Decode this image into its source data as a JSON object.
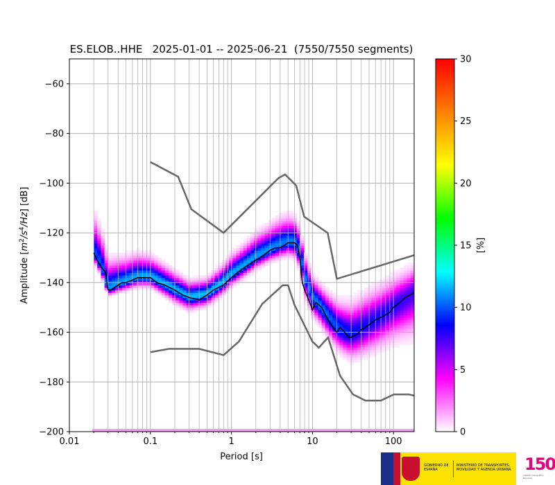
{
  "chart_data": {
    "type": "heatmap",
    "title": "ES.ELOB..HHE   2025-01-01 -- 2025-06-21  (7550/7550 segments)",
    "xlabel": "Period [s]",
    "ylabel": "Amplitude [m²/s⁴/Hz] [dB]",
    "ylabel_parts": {
      "main": "Amplitude [",
      "m": "m",
      "sup2": "2",
      "s": "/s",
      "sup4": "4",
      "hz": "/Hz",
      "end": "] [dB]"
    },
    "x_scale": "log",
    "xlim": [
      0.01,
      180
    ],
    "ylim": [
      -200,
      -50
    ],
    "x_ticks": [
      0.01,
      0.1,
      1,
      10,
      100
    ],
    "x_tick_labels": [
      "0.01",
      "0.1",
      "1",
      "10",
      "100"
    ],
    "y_ticks": [
      -200,
      -180,
      -160,
      -140,
      -120,
      -100,
      -80,
      -60
    ],
    "y_tick_labels": [
      "−200",
      "−180",
      "−160",
      "−140",
      "−120",
      "−100",
      "−80",
      "−60"
    ],
    "grid": true,
    "colorbar": {
      "label": "[%]",
      "range": [
        0,
        30
      ],
      "ticks": [
        0,
        5,
        10,
        15,
        20,
        25,
        30
      ],
      "tick_labels": [
        "0",
        "5",
        "10",
        "15",
        "20",
        "25",
        "30"
      ],
      "colors": [
        "#ffffff",
        "#ff00ff",
        "#0000ff",
        "#00ffff",
        "#00ff00",
        "#ffff00",
        "#ff8000",
        "#ff0000"
      ]
    },
    "mode_line": {
      "name": "mode",
      "color": "#000000",
      "x": [
        0.02,
        0.022,
        0.025,
        0.028,
        0.03,
        0.033,
        0.036,
        0.04,
        0.045,
        0.05,
        0.06,
        0.07,
        0.08,
        0.09,
        0.1,
        0.12,
        0.15,
        0.2,
        0.25,
        0.3,
        0.4,
        0.5,
        0.6,
        0.8,
        1.0,
        1.3,
        1.6,
        2.0,
        2.5,
        3.0,
        3.5,
        4.0,
        4.5,
        5.0,
        6.0,
        6.5,
        7.0,
        7.5,
        8.0,
        9.0,
        10,
        11,
        12,
        13,
        15,
        17,
        20,
        22,
        25,
        28,
        30,
        35,
        40,
        50,
        60,
        70,
        80,
        90,
        100,
        120,
        140,
        160,
        180
      ],
      "y": [
        -128,
        -131,
        -134,
        -136,
        -143,
        -143,
        -142,
        -141,
        -140,
        -140,
        -139,
        -138,
        -138,
        -138,
        -138,
        -140,
        -141,
        -143,
        -145,
        -146,
        -147,
        -145,
        -143,
        -141,
        -138,
        -135,
        -133,
        -131,
        -129,
        -127,
        -126,
        -126,
        -125,
        -124,
        -124,
        -125,
        -130,
        -140,
        -143,
        -147,
        -151,
        -148,
        -149,
        -150,
        -154,
        -157,
        -160,
        -158,
        -160,
        -162,
        -162,
        -161,
        -159,
        -157,
        -155,
        -154,
        -153,
        -152,
        -150,
        -148,
        -146,
        -145,
        -144
      ]
    },
    "noise_models": [
      {
        "name": "upper",
        "color": "#666666",
        "x": [
          0.1,
          0.22,
          0.32,
          0.8,
          3.8,
          4.6,
          6.3,
          7.9,
          15.4,
          20,
          180
        ],
        "y": [
          -91.5,
          -97.4,
          -110.5,
          -120,
          -98,
          -96.5,
          -101,
          -113.5,
          -120,
          -138.5,
          -129
        ]
      },
      {
        "name": "lower",
        "color": "#666666",
        "x": [
          0.1,
          0.17,
          0.4,
          0.8,
          1.24,
          2.4,
          4.3,
          5.0,
          6.0,
          10,
          12,
          15.6,
          21.9,
          31.6,
          45,
          70,
          101,
          154,
          180
        ],
        "y": [
          -168,
          -166.7,
          -166.7,
          -169.2,
          -163.7,
          -148.6,
          -141.1,
          -141.1,
          -149,
          -163.8,
          -166.2,
          -162.1,
          -177.5,
          -185,
          -187.5,
          -187.5,
          -185,
          -185,
          -185.5
        ]
      }
    ],
    "pdf_band": {
      "x": [
        0.02,
        0.025,
        0.03,
        0.04,
        0.05,
        0.07,
        0.1,
        0.15,
        0.2,
        0.3,
        0.5,
        0.8,
        1.0,
        1.5,
        2.0,
        3.0,
        4.0,
        5.0,
        6.0,
        7.0,
        8.0,
        10,
        12,
        15,
        20,
        25,
        30,
        40,
        50,
        70,
        100,
        150,
        180
      ],
      "center": [
        -128,
        -134,
        -143,
        -141,
        -140,
        -138,
        -138,
        -141,
        -143,
        -146,
        -145,
        -140,
        -137,
        -133,
        -130,
        -127,
        -125,
        -124,
        -124,
        -128,
        -138,
        -146,
        -149,
        -153,
        -158,
        -160,
        -161,
        -159,
        -157,
        -154,
        -150,
        -146,
        -144
      ],
      "upper_spread": [
        22,
        20,
        17,
        15,
        14,
        13,
        12,
        11,
        10,
        9,
        9,
        10,
        11,
        12,
        13,
        14,
        15,
        15,
        14,
        14,
        13,
        12,
        12,
        13,
        15,
        17,
        18,
        19,
        19,
        18,
        17,
        16,
        15
      ],
      "lower_spread": [
        6,
        6,
        4,
        5,
        5,
        6,
        6,
        7,
        8,
        8,
        7,
        7,
        7,
        7,
        7,
        7,
        8,
        8,
        9,
        10,
        11,
        11,
        11,
        12,
        13,
        14,
        15,
        16,
        17,
        18,
        20,
        24,
        26
      ]
    }
  },
  "footer": {
    "gobierno": "GOBIERNO DE ESPAÑA",
    "ministerio": "MINISTERIO DE TRANSPORTES, MOVILIDAD Y AGENDA URBANA",
    "logo_number": "150",
    "logo_caption": "Instituto Geográfico Nacional"
  }
}
